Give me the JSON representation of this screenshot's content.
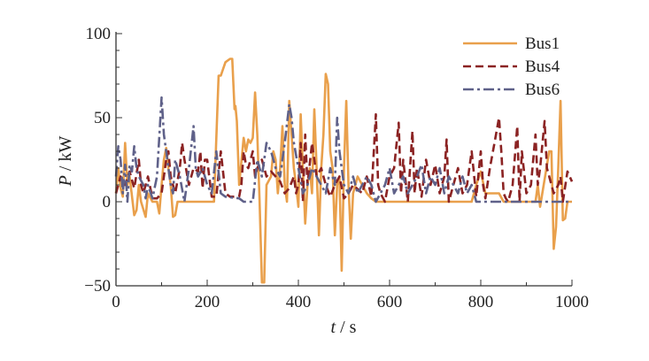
{
  "chart_data": {
    "type": "line",
    "title": "",
    "xlabel": "t / s",
    "ylabel": "P / kW",
    "xlim": [
      0,
      1000
    ],
    "ylim": [
      -50,
      100
    ],
    "xticks": [
      0,
      200,
      400,
      600,
      800,
      1000
    ],
    "yticks": [
      -50,
      0,
      50,
      100
    ],
    "grid": false,
    "legend_position": "top-right",
    "series": [
      {
        "name": "Bus1",
        "color": "#e9a04c",
        "style": "solid",
        "points": [
          [
            0,
            5
          ],
          [
            5,
            20
          ],
          [
            10,
            8
          ],
          [
            15,
            3
          ],
          [
            20,
            35
          ],
          [
            25,
            10
          ],
          [
            30,
            15
          ],
          [
            40,
            -8
          ],
          [
            45,
            -5
          ],
          [
            50,
            10
          ],
          [
            55,
            0
          ],
          [
            65,
            -9
          ],
          [
            70,
            5
          ],
          [
            80,
            0
          ],
          [
            90,
            0
          ],
          [
            95,
            -7
          ],
          [
            100,
            10
          ],
          [
            105,
            25
          ],
          [
            110,
            32
          ],
          [
            115,
            20
          ],
          [
            120,
            10
          ],
          [
            125,
            -9
          ],
          [
            130,
            -8
          ],
          [
            135,
            0
          ],
          [
            150,
            0
          ],
          [
            200,
            0
          ],
          [
            215,
            0
          ],
          [
            225,
            75
          ],
          [
            230,
            75
          ],
          [
            240,
            83
          ],
          [
            250,
            85
          ],
          [
            255,
            85
          ],
          [
            260,
            55
          ],
          [
            262,
            57
          ],
          [
            265,
            48
          ],
          [
            270,
            10
          ],
          [
            280,
            38
          ],
          [
            285,
            30
          ],
          [
            290,
            37
          ],
          [
            295,
            35
          ],
          [
            300,
            38
          ],
          [
            305,
            65
          ],
          [
            310,
            40
          ],
          [
            315,
            0
          ],
          [
            320,
            -48
          ],
          [
            325,
            -48
          ],
          [
            330,
            10
          ],
          [
            340,
            15
          ],
          [
            345,
            30
          ],
          [
            350,
            25
          ],
          [
            355,
            5
          ],
          [
            360,
            20
          ],
          [
            365,
            45
          ],
          [
            370,
            10
          ],
          [
            375,
            0
          ],
          [
            380,
            60
          ],
          [
            385,
            40
          ],
          [
            390,
            20
          ],
          [
            395,
            10
          ],
          [
            400,
            -3
          ],
          [
            405,
            52
          ],
          [
            410,
            20
          ],
          [
            415,
            -13
          ],
          [
            420,
            10
          ],
          [
            425,
            20
          ],
          [
            430,
            5
          ],
          [
            435,
            55
          ],
          [
            440,
            20
          ],
          [
            445,
            -20
          ],
          [
            450,
            20
          ],
          [
            455,
            40
          ],
          [
            460,
            76
          ],
          [
            465,
            70
          ],
          [
            470,
            30
          ],
          [
            475,
            20
          ],
          [
            480,
            -20
          ],
          [
            485,
            10
          ],
          [
            490,
            15
          ],
          [
            495,
            -41
          ],
          [
            500,
            20
          ],
          [
            505,
            60
          ],
          [
            510,
            10
          ],
          [
            515,
            -22
          ],
          [
            520,
            5
          ],
          [
            530,
            15
          ],
          [
            540,
            10
          ],
          [
            550,
            5
          ],
          [
            560,
            2
          ],
          [
            570,
            0
          ],
          [
            780,
            0
          ],
          [
            790,
            10
          ],
          [
            800,
            18
          ],
          [
            810,
            5
          ],
          [
            840,
            5
          ],
          [
            850,
            0
          ],
          [
            920,
            0
          ],
          [
            925,
            10
          ],
          [
            930,
            -3
          ],
          [
            935,
            5
          ],
          [
            950,
            30
          ],
          [
            955,
            30
          ],
          [
            960,
            -28
          ],
          [
            965,
            -15
          ],
          [
            970,
            20
          ],
          [
            975,
            60
          ],
          [
            980,
            -11
          ],
          [
            985,
            -10
          ],
          [
            990,
            0
          ],
          [
            1000,
            0
          ]
        ]
      },
      {
        "name": "Bus4",
        "color": "#8b2323",
        "style": "dashed",
        "points": [
          [
            0,
            5
          ],
          [
            10,
            15
          ],
          [
            20,
            10
          ],
          [
            30,
            18
          ],
          [
            40,
            8
          ],
          [
            50,
            25
          ],
          [
            55,
            10
          ],
          [
            60,
            5
          ],
          [
            70,
            15
          ],
          [
            80,
            2
          ],
          [
            90,
            2
          ],
          [
            100,
            5
          ],
          [
            110,
            25
          ],
          [
            115,
            30
          ],
          [
            120,
            15
          ],
          [
            130,
            5
          ],
          [
            140,
            20
          ],
          [
            145,
            35
          ],
          [
            150,
            25
          ],
          [
            160,
            10
          ],
          [
            170,
            20
          ],
          [
            180,
            18
          ],
          [
            185,
            30
          ],
          [
            190,
            8
          ],
          [
            195,
            25
          ],
          [
            200,
            25
          ],
          [
            210,
            3
          ],
          [
            220,
            3
          ],
          [
            230,
            30
          ],
          [
            240,
            5
          ],
          [
            250,
            3
          ],
          [
            270,
            3
          ],
          [
            275,
            10
          ],
          [
            280,
            30
          ],
          [
            285,
            22
          ],
          [
            290,
            20
          ],
          [
            300,
            30
          ],
          [
            305,
            15
          ],
          [
            310,
            20
          ],
          [
            320,
            25
          ],
          [
            330,
            15
          ],
          [
            340,
            18
          ],
          [
            350,
            15
          ],
          [
            360,
            12
          ],
          [
            370,
            5
          ],
          [
            380,
            8
          ],
          [
            390,
            15
          ],
          [
            395,
            5
          ],
          [
            400,
            10
          ],
          [
            405,
            35
          ],
          [
            410,
            0
          ],
          [
            415,
            40
          ],
          [
            420,
            10
          ],
          [
            430,
            35
          ],
          [
            440,
            15
          ],
          [
            450,
            20
          ],
          [
            460,
            10
          ],
          [
            470,
            3
          ],
          [
            480,
            10
          ],
          [
            490,
            15
          ],
          [
            500,
            2
          ],
          [
            510,
            5
          ],
          [
            520,
            10
          ],
          [
            540,
            5
          ],
          [
            550,
            15
          ],
          [
            560,
            3
          ],
          [
            570,
            52
          ],
          [
            575,
            10
          ],
          [
            580,
            5
          ],
          [
            590,
            0
          ],
          [
            600,
            15
          ],
          [
            610,
            20
          ],
          [
            620,
            47
          ],
          [
            625,
            5
          ],
          [
            630,
            25
          ],
          [
            640,
            0
          ],
          [
            650,
            42
          ],
          [
            655,
            5
          ],
          [
            660,
            20
          ],
          [
            670,
            3
          ],
          [
            680,
            25
          ],
          [
            690,
            10
          ],
          [
            700,
            22
          ],
          [
            710,
            5
          ],
          [
            720,
            15
          ],
          [
            725,
            37
          ],
          [
            730,
            0
          ],
          [
            740,
            10
          ],
          [
            750,
            20
          ],
          [
            760,
            5
          ],
          [
            770,
            10
          ],
          [
            780,
            30
          ],
          [
            790,
            3
          ],
          [
            800,
            30
          ],
          [
            805,
            10
          ],
          [
            810,
            2
          ],
          [
            820,
            20
          ],
          [
            830,
            35
          ],
          [
            840,
            50
          ],
          [
            845,
            30
          ],
          [
            850,
            5
          ],
          [
            855,
            2
          ],
          [
            860,
            0
          ],
          [
            870,
            10
          ],
          [
            880,
            45
          ],
          [
            885,
            0
          ],
          [
            890,
            30
          ],
          [
            900,
            5
          ],
          [
            910,
            10
          ],
          [
            920,
            40
          ],
          [
            925,
            10
          ],
          [
            930,
            20
          ],
          [
            940,
            48
          ],
          [
            945,
            20
          ],
          [
            950,
            15
          ],
          [
            960,
            5
          ],
          [
            970,
            10
          ],
          [
            975,
            15
          ],
          [
            980,
            0
          ],
          [
            990,
            18
          ],
          [
            1000,
            12
          ]
        ]
      },
      {
        "name": "Bus6",
        "color": "#5f6189",
        "style": "dashdot",
        "points": [
          [
            0,
            15
          ],
          [
            5,
            33
          ],
          [
            10,
            25
          ],
          [
            15,
            5
          ],
          [
            20,
            22
          ],
          [
            25,
            0
          ],
          [
            30,
            22
          ],
          [
            35,
            18
          ],
          [
            40,
            33
          ],
          [
            45,
            20
          ],
          [
            50,
            15
          ],
          [
            60,
            10
          ],
          [
            65,
            2
          ],
          [
            70,
            10
          ],
          [
            80,
            2
          ],
          [
            90,
            15
          ],
          [
            100,
            62
          ],
          [
            105,
            40
          ],
          [
            110,
            30
          ],
          [
            115,
            20
          ],
          [
            120,
            10
          ],
          [
            125,
            5
          ],
          [
            130,
            25
          ],
          [
            140,
            15
          ],
          [
            150,
            0
          ],
          [
            160,
            20
          ],
          [
            170,
            45
          ],
          [
            175,
            20
          ],
          [
            180,
            15
          ],
          [
            190,
            20
          ],
          [
            200,
            10
          ],
          [
            210,
            5
          ],
          [
            220,
            30
          ],
          [
            230,
            5
          ],
          [
            240,
            3
          ],
          [
            270,
            2
          ],
          [
            280,
            0
          ],
          [
            300,
            0
          ],
          [
            310,
            25
          ],
          [
            320,
            15
          ],
          [
            330,
            35
          ],
          [
            340,
            30
          ],
          [
            350,
            20
          ],
          [
            360,
            15
          ],
          [
            370,
            35
          ],
          [
            380,
            58
          ],
          [
            385,
            50
          ],
          [
            390,
            35
          ],
          [
            400,
            20
          ],
          [
            410,
            5
          ],
          [
            420,
            10
          ],
          [
            430,
            20
          ],
          [
            440,
            15
          ],
          [
            450,
            10
          ],
          [
            460,
            5
          ],
          [
            470,
            20
          ],
          [
            480,
            10
          ],
          [
            485,
            50
          ],
          [
            490,
            30
          ],
          [
            495,
            20
          ],
          [
            500,
            10
          ],
          [
            510,
            5
          ],
          [
            520,
            15
          ],
          [
            530,
            5
          ],
          [
            540,
            10
          ],
          [
            550,
            15
          ],
          [
            560,
            10
          ],
          [
            570,
            0
          ],
          [
            580,
            5
          ],
          [
            590,
            10
          ],
          [
            600,
            20
          ],
          [
            610,
            5
          ],
          [
            620,
            10
          ],
          [
            630,
            15
          ],
          [
            640,
            5
          ],
          [
            650,
            10
          ],
          [
            660,
            15
          ],
          [
            670,
            22
          ],
          [
            680,
            5
          ],
          [
            690,
            15
          ],
          [
            700,
            10
          ],
          [
            710,
            20
          ],
          [
            720,
            5
          ],
          [
            730,
            15
          ],
          [
            740,
            10
          ],
          [
            750,
            5
          ],
          [
            760,
            15
          ],
          [
            770,
            5
          ],
          [
            780,
            10
          ],
          [
            790,
            0
          ],
          [
            1000,
            0
          ]
        ]
      }
    ]
  }
}
